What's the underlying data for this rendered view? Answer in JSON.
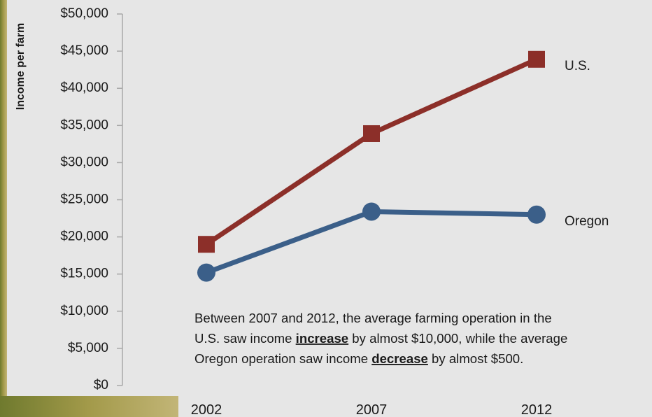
{
  "chart_data": {
    "type": "line",
    "y_label": "Income per farm",
    "x": [
      "2002",
      "2007",
      "2012"
    ],
    "series": [
      {
        "name": "U.S.",
        "color": "#8c2f29",
        "marker": "square",
        "values": [
          19000,
          33900,
          43900
        ]
      },
      {
        "name": "Oregon",
        "color": "#3b5f89",
        "marker": "circle",
        "values": [
          15200,
          23400,
          23000
        ]
      }
    ],
    "ylim": [
      0,
      50000
    ],
    "yticks": [
      {
        "value": 0,
        "label": "$0"
      },
      {
        "value": 5000,
        "label": "$5,000"
      },
      {
        "value": 10000,
        "label": "$10,000"
      },
      {
        "value": 15000,
        "label": "$15,000"
      },
      {
        "value": 20000,
        "label": "$20,000"
      },
      {
        "value": 25000,
        "label": "$25,000"
      },
      {
        "value": 30000,
        "label": "$30,000"
      },
      {
        "value": 35000,
        "label": "$35,000"
      },
      {
        "value": 40000,
        "label": "$40,000"
      },
      {
        "value": 45000,
        "label": "$45,000"
      },
      {
        "value": 50000,
        "label": "$50,000"
      }
    ],
    "annotation": [
      [
        "Between 2007 and 2012, the average farming operation in the"
      ],
      [
        "U.S. saw income ",
        "increase",
        " by almost $10,000, while the average"
      ],
      [
        "Oregon operation saw income ",
        "decrease",
        " by almost $500."
      ]
    ]
  }
}
